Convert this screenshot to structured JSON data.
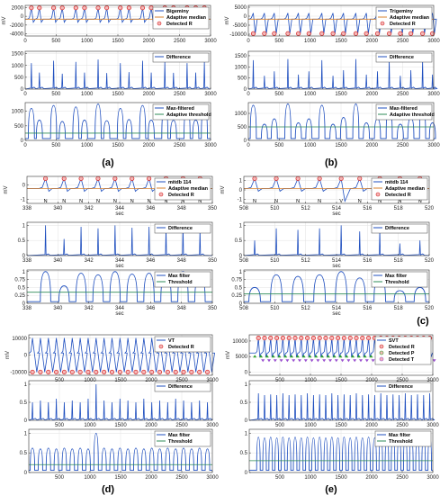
{
  "figure": {
    "panel_labels": [
      "(a)",
      "(b)",
      "(c)",
      "(d)",
      "(e)"
    ]
  },
  "chart_data": [
    {
      "id": "a1",
      "type": "line",
      "ylabel": "mV",
      "xticks": [
        0,
        500,
        1000,
        1500,
        2000,
        2500,
        3000
      ],
      "xlim": [
        0,
        3000
      ],
      "yticks": [
        2000,
        0,
        -2000,
        -4000
      ],
      "ylim": [
        -4500,
        2500
      ],
      "legend": [
        "Bigeminy",
        "Adaptive median",
        "Detected R"
      ],
      "peaks": [
        100,
        230,
        460,
        600,
        820,
        960,
        1180,
        1320,
        1540,
        1680,
        1900,
        2040,
        2260,
        2400,
        2620,
        2760,
        2900
      ],
      "series": [
        {
          "name": "Bigeminy",
          "color": "#1f4fbf"
        },
        {
          "name": "Adaptive median",
          "color": "#d9822b"
        },
        {
          "name": "Detected R",
          "color": "#d42020"
        }
      ]
    },
    {
      "id": "a2",
      "type": "line",
      "xticks": [
        0,
        500,
        1000,
        1500,
        2000,
        2500,
        3000
      ],
      "xlim": [
        0,
        3000
      ],
      "yticks": [
        0,
        500,
        1000,
        1500
      ],
      "ylim": [
        0,
        1600
      ],
      "legend": [
        "Difference"
      ],
      "peaks": [
        100,
        230,
        460,
        600,
        820,
        960,
        1180,
        1320,
        1540,
        1680,
        1900,
        2040,
        2260,
        2400,
        2620,
        2760,
        2900
      ],
      "peak_values": [
        1100,
        700,
        1200,
        650,
        1150,
        700,
        1250,
        680,
        1100,
        720,
        1200,
        700,
        1150,
        690,
        1100,
        700,
        1150
      ],
      "series": [
        {
          "name": "Difference",
          "color": "#1f4fbf"
        }
      ]
    },
    {
      "id": "a3",
      "type": "line",
      "xticks": [
        0,
        500,
        1000,
        1500,
        2000,
        2500,
        3000
      ],
      "xlim": [
        0,
        3000
      ],
      "yticks": [
        0,
        500,
        1000
      ],
      "ylim": [
        0,
        1300
      ],
      "legend": [
        "Max-filtered",
        "Adaptive threshold"
      ],
      "peaks": [
        100,
        230,
        460,
        600,
        820,
        960,
        1180,
        1320,
        1540,
        1680,
        1900,
        2040,
        2260,
        2400,
        2620,
        2760,
        2900
      ],
      "peak_values": [
        1100,
        700,
        1200,
        650,
        1150,
        700,
        1250,
        680,
        1100,
        720,
        1200,
        700,
        1150,
        690,
        1100,
        700,
        1150
      ],
      "threshold": 250,
      "series": [
        {
          "name": "Max-filtered",
          "color": "#1f4fbf"
        },
        {
          "name": "Adaptive threshold",
          "color": "#2e8b57"
        }
      ]
    },
    {
      "id": "b1",
      "type": "line",
      "ylabel": "mV",
      "xticks": [
        0,
        500,
        1000,
        1500,
        2000,
        2500,
        3000
      ],
      "xlim": [
        0,
        3000
      ],
      "yticks": [
        5000,
        0,
        -5000,
        -10000
      ],
      "ylim": [
        -11000,
        6000
      ],
      "legend": [
        "Trigeminy",
        "Adaptive median",
        "Detected R"
      ],
      "peaks": [
        80,
        260,
        420,
        640,
        810,
        980,
        1190,
        1370,
        1540,
        1740,
        1910,
        2090,
        2280,
        2460,
        2630,
        2820,
        2980
      ],
      "series": [
        {
          "name": "Trigeminy",
          "color": "#1f4fbf"
        },
        {
          "name": "Adaptive median",
          "color": "#d9822b"
        },
        {
          "name": "Detected R",
          "color": "#d42020"
        }
      ]
    },
    {
      "id": "b2",
      "type": "line",
      "xticks": [
        0,
        500,
        1000,
        1500,
        2000,
        2500,
        3000
      ],
      "xlim": [
        0,
        3000
      ],
      "yticks": [
        0,
        500,
        1000,
        1500
      ],
      "ylim": [
        0,
        1700
      ],
      "legend": [
        "Difference"
      ],
      "peaks": [
        80,
        260,
        420,
        640,
        810,
        980,
        1190,
        1370,
        1540,
        1740,
        1910,
        2090,
        2280,
        2460,
        2630,
        2820,
        2980
      ],
      "peak_values": [
        1300,
        600,
        800,
        1350,
        650,
        800,
        1300,
        600,
        850,
        1350,
        650,
        800,
        1300,
        600,
        850,
        1300,
        650
      ],
      "series": [
        {
          "name": "Difference",
          "color": "#1f4fbf"
        }
      ]
    },
    {
      "id": "b3",
      "type": "line",
      "xticks": [
        0,
        500,
        1000,
        1500,
        2000,
        2500,
        3000
      ],
      "xlim": [
        0,
        3000
      ],
      "yticks": [
        0,
        500,
        1000
      ],
      "ylim": [
        0,
        1400
      ],
      "legend": [
        "Max-filtered",
        "Adaptive threshold"
      ],
      "peaks": [
        80,
        260,
        420,
        640,
        810,
        980,
        1190,
        1370,
        1540,
        1740,
        1910,
        2090,
        2280,
        2460,
        2630,
        2820,
        2980
      ],
      "peak_values": [
        1300,
        600,
        800,
        1350,
        650,
        800,
        1300,
        600,
        850,
        1350,
        650,
        800,
        1300,
        600,
        850,
        1300,
        650
      ],
      "threshold": 500,
      "series": [
        {
          "name": "Max-filtered",
          "color": "#1f4fbf"
        },
        {
          "name": "Adaptive threshold",
          "color": "#2e8b57"
        }
      ]
    },
    {
      "id": "c1",
      "type": "line",
      "ylabel": "mV",
      "xlabel": "sec",
      "xticks": [
        338,
        340,
        342,
        344,
        346,
        348,
        350
      ],
      "xlim": [
        338,
        350
      ],
      "yticks": [
        0,
        -1
      ],
      "ylim": [
        -1.3,
        0.6
      ],
      "legend": [
        "mitdb 114",
        "Adaptive median",
        "Detected R"
      ],
      "peaks": [
        339.2,
        340.4,
        341.5,
        342.6,
        343.7,
        344.8,
        345.9,
        347.0,
        348.1,
        349.2
      ],
      "beat_labels": [
        "N",
        "N",
        "N",
        "N",
        "N",
        "N",
        "N",
        "N",
        "N",
        "N"
      ],
      "series": [
        {
          "name": "mitdb 114",
          "color": "#1f4fbf"
        },
        {
          "name": "Adaptive median",
          "color": "#d9822b"
        },
        {
          "name": "Detected R",
          "color": "#d42020"
        }
      ]
    },
    {
      "id": "c2",
      "type": "line",
      "xlabel": "sec",
      "xticks": [
        338,
        340,
        342,
        344,
        346,
        348,
        350
      ],
      "xlim": [
        338,
        350
      ],
      "yticks": [
        0,
        0.5,
        1
      ],
      "ylim": [
        0,
        1.1
      ],
      "legend": [
        "Difference"
      ],
      "peaks": [
        339.2,
        340.4,
        341.5,
        342.6,
        343.7,
        344.8,
        345.9,
        347.0,
        348.1,
        349.2
      ],
      "peak_values": [
        1.0,
        0.55,
        0.95,
        0.9,
        1.0,
        0.92,
        0.95,
        0.9,
        1.0,
        0.85
      ],
      "series": [
        {
          "name": "Difference",
          "color": "#1f4fbf"
        }
      ]
    },
    {
      "id": "c3",
      "type": "line",
      "xlabel": "sec",
      "xticks": [
        338,
        340,
        342,
        344,
        346,
        348,
        350
      ],
      "xlim": [
        338,
        350
      ],
      "yticks": [
        0,
        0.25,
        0.5,
        0.75,
        1
      ],
      "ylim": [
        0,
        1.05
      ],
      "legend": [
        "Max filter",
        "Threshold"
      ],
      "peaks": [
        339.2,
        340.4,
        341.5,
        342.6,
        343.7,
        344.8,
        345.9,
        347.0,
        348.1,
        349.2
      ],
      "peak_values": [
        1.0,
        0.55,
        0.95,
        0.9,
        1.0,
        0.92,
        0.95,
        0.9,
        1.0,
        0.85
      ],
      "threshold": 0.35,
      "series": [
        {
          "name": "Max filter",
          "color": "#1f4fbf"
        },
        {
          "name": "Threshold",
          "color": "#2e8b57"
        }
      ]
    },
    {
      "id": "c4",
      "type": "line",
      "ylabel": "mV",
      "xlabel": "sec",
      "xticks": [
        508,
        510,
        512,
        514,
        516,
        518,
        520
      ],
      "xlim": [
        508,
        520
      ],
      "yticks": [
        1,
        0,
        -1
      ],
      "ylim": [
        -1.4,
        1.4
      ],
      "legend": [
        "mitdb 114",
        "Adaptive median",
        "Detected R"
      ],
      "peaks": [
        508.7,
        510.1,
        511.5,
        512.9,
        514.3,
        515.5,
        516.8,
        518.1,
        519.4
      ],
      "beat_labels": [
        "N",
        "N",
        "N",
        "N",
        "V",
        "N",
        "N",
        "N",
        "N"
      ],
      "series": [
        {
          "name": "mitdb 114",
          "color": "#1f4fbf"
        },
        {
          "name": "Adaptive median",
          "color": "#d9822b"
        },
        {
          "name": "Detected R",
          "color": "#d42020"
        }
      ]
    },
    {
      "id": "c5",
      "type": "line",
      "xlabel": "sec",
      "xticks": [
        508,
        510,
        512,
        514,
        516,
        518,
        520
      ],
      "xlim": [
        508,
        520
      ],
      "yticks": [
        0,
        0.5,
        1
      ],
      "ylim": [
        0,
        1.1
      ],
      "legend": [
        "Difference"
      ],
      "peaks": [
        508.7,
        510.1,
        511.5,
        512.9,
        514.3,
        515.5,
        516.8,
        518.1,
        519.4
      ],
      "peak_values": [
        0.5,
        0.9,
        0.85,
        0.9,
        1.0,
        0.8,
        0.85,
        0.4,
        0.5
      ],
      "series": [
        {
          "name": "Difference",
          "color": "#1f4fbf"
        }
      ]
    },
    {
      "id": "c6",
      "type": "line",
      "xlabel": "sec",
      "xticks": [
        508,
        510,
        512,
        514,
        516,
        518,
        520
      ],
      "xlim": [
        508,
        520
      ],
      "yticks": [
        0,
        0.25,
        0.5,
        0.75,
        1
      ],
      "ylim": [
        0,
        1.05
      ],
      "legend": [
        "Max filter",
        "Threshold"
      ],
      "peaks": [
        508.7,
        510.1,
        511.5,
        512.9,
        514.3,
        515.5,
        516.8,
        518.1,
        519.4
      ],
      "peak_values": [
        0.5,
        0.9,
        0.85,
        0.9,
        1.0,
        0.8,
        0.85,
        0.4,
        0.5
      ],
      "threshold": 0.3,
      "series": [
        {
          "name": "Max filter",
          "color": "#1f4fbf"
        },
        {
          "name": "Threshold",
          "color": "#2e8b57"
        }
      ]
    },
    {
      "id": "d1",
      "type": "line",
      "ylabel": "mV",
      "xticks": [
        500,
        1000,
        1500,
        2000,
        2500,
        3000
      ],
      "xlim": [
        0,
        3000
      ],
      "yticks": [
        10000,
        0,
        -10000
      ],
      "ylim": [
        -12000,
        12000
      ],
      "legend": [
        "VT",
        "Detected R"
      ],
      "peaks": [
        60,
        190,
        320,
        450,
        580,
        710,
        840,
        970,
        1100,
        1230,
        1360,
        1490,
        1620,
        1750,
        1880,
        2010,
        2140,
        2270,
        2400,
        2530,
        2660,
        2790,
        2920
      ],
      "series": [
        {
          "name": "VT",
          "color": "#1f4fbf"
        },
        {
          "name": "Detected R",
          "color": "#d42020"
        }
      ]
    },
    {
      "id": "d2",
      "type": "line",
      "xticks": [
        500,
        1000,
        1500,
        2000,
        2500,
        3000
      ],
      "xlim": [
        0,
        3000
      ],
      "yticks": [
        0,
        0.5,
        1
      ],
      "ylim": [
        0,
        1.1
      ],
      "legend": [
        "Difference"
      ],
      "peaks": [
        60,
        190,
        320,
        450,
        580,
        710,
        840,
        970,
        1100,
        1230,
        1360,
        1490,
        1620,
        1750,
        1880,
        2010,
        2140,
        2270,
        2400,
        2530,
        2660,
        2790,
        2920
      ],
      "peak_values": [
        0.5,
        0.55,
        0.5,
        0.6,
        0.5,
        0.55,
        0.5,
        0.6,
        1.0,
        0.55,
        0.5,
        0.6,
        0.55,
        0.5,
        0.6,
        0.5,
        0.55,
        0.5,
        0.6,
        0.55,
        0.5,
        0.55,
        0.5
      ],
      "series": [
        {
          "name": "Difference",
          "color": "#1f4fbf"
        }
      ]
    },
    {
      "id": "d3",
      "type": "line",
      "xticks": [
        500,
        1000,
        1500,
        2000,
        2500,
        3000
      ],
      "xlim": [
        0,
        3000
      ],
      "yticks": [
        0,
        0.5,
        1
      ],
      "ylim": [
        0,
        1.1
      ],
      "legend": [
        "Max filter",
        "Threshold"
      ],
      "peaks": [
        60,
        190,
        320,
        450,
        580,
        710,
        840,
        970,
        1100,
        1230,
        1360,
        1490,
        1620,
        1750,
        1880,
        2010,
        2140,
        2270,
        2400,
        2530,
        2660,
        2790,
        2920
      ],
      "peak_values": [
        0.62,
        0.6,
        0.62,
        0.6,
        0.62,
        0.6,
        0.62,
        0.6,
        1.0,
        0.62,
        0.6,
        0.62,
        0.6,
        0.62,
        0.6,
        0.62,
        0.6,
        0.62,
        0.6,
        0.62,
        0.6,
        0.62,
        0.6
      ],
      "threshold": 0.2,
      "series": [
        {
          "name": "Max filter",
          "color": "#1f4fbf"
        },
        {
          "name": "Threshold",
          "color": "#2e8b57"
        }
      ]
    },
    {
      "id": "e1",
      "type": "line",
      "ylabel": "mV",
      "xticks": [
        500,
        1000,
        1500,
        2000,
        2500,
        3000
      ],
      "xlim": [
        0,
        3000
      ],
      "yticks": [
        10000,
        5000,
        0
      ],
      "ylim": [
        -1000,
        12000
      ],
      "legend": [
        "SVT",
        "Detected R",
        "Detected P",
        "Detected T"
      ],
      "peaks": [
        150,
        250,
        350,
        450,
        550,
        650,
        750,
        850,
        950,
        1050,
        1150,
        1250,
        1350,
        1450,
        1550,
        1650,
        1750,
        1850,
        1950,
        2050,
        2150,
        2250,
        2350,
        2450,
        2550,
        2650,
        2750,
        2850,
        2950
      ],
      "series": [
        {
          "name": "SVT",
          "color": "#1f4fbf"
        },
        {
          "name": "Detected R",
          "color": "#d42020"
        },
        {
          "name": "Detected P",
          "color": "#2ca02c"
        },
        {
          "name": "Detected T",
          "color": "#9a4fd0"
        }
      ]
    },
    {
      "id": "e2",
      "type": "line",
      "xticks": [
        500,
        1000,
        1500,
        2000,
        2500,
        3000
      ],
      "xlim": [
        0,
        3000
      ],
      "yticks": [
        0,
        0.5,
        1
      ],
      "ylim": [
        0,
        1.1
      ],
      "legend": [
        "Difference"
      ],
      "peaks": [
        150,
        250,
        350,
        450,
        550,
        650,
        750,
        850,
        950,
        1050,
        1150,
        1250,
        1350,
        1450,
        1550,
        1650,
        1750,
        1850,
        1950,
        2050,
        2150,
        2250,
        2350,
        2450,
        2550,
        2650,
        2750,
        2850,
        2950
      ],
      "peak_values": [
        0.75,
        0.7,
        0.72,
        0.7,
        0.75,
        0.7,
        0.72,
        0.7,
        0.75,
        0.7,
        0.72,
        0.7,
        0.75,
        0.7,
        0.72,
        0.7,
        0.75,
        0.7,
        0.72,
        0.7,
        0.75,
        0.7,
        0.72,
        0.7,
        0.75,
        0.7,
        0.72,
        0.7,
        0.75
      ],
      "series": [
        {
          "name": "Difference",
          "color": "#1f4fbf"
        }
      ]
    },
    {
      "id": "e3",
      "type": "line",
      "xticks": [
        500,
        1000,
        1500,
        2000,
        2500,
        3000
      ],
      "xlim": [
        0,
        3000
      ],
      "yticks": [
        0,
        0.5,
        1
      ],
      "ylim": [
        0,
        1.1
      ],
      "legend": [
        "Max filter",
        "Threshold"
      ],
      "peaks": [
        150,
        250,
        350,
        450,
        550,
        650,
        750,
        850,
        950,
        1050,
        1150,
        1250,
        1350,
        1450,
        1550,
        1650,
        1750,
        1850,
        1950,
        2050,
        2150,
        2250,
        2350,
        2450,
        2550,
        2650,
        2750,
        2850,
        2950
      ],
      "peak_values": [
        0.9,
        0.88,
        0.9,
        0.88,
        0.9,
        0.88,
        0.9,
        0.88,
        0.9,
        0.88,
        0.9,
        0.88,
        0.9,
        0.88,
        0.9,
        0.88,
        0.9,
        0.88,
        0.9,
        0.88,
        0.9,
        0.88,
        0.9,
        0.88,
        0.9,
        0.88,
        0.9,
        0.88,
        0.9
      ],
      "threshold": 0.3,
      "series": [
        {
          "name": "Max filter",
          "color": "#1f4fbf"
        },
        {
          "name": "Threshold",
          "color": "#2e8b57"
        }
      ]
    }
  ]
}
